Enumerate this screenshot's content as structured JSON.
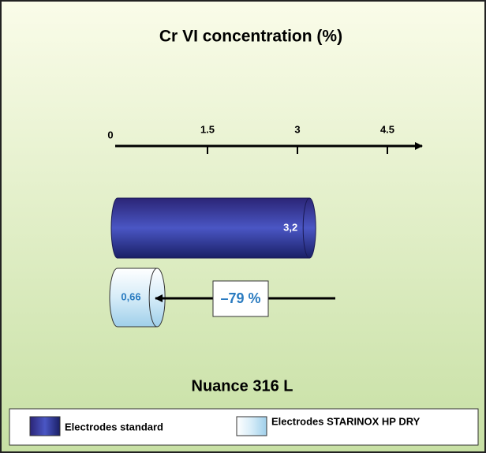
{
  "chart_data": {
    "type": "cylinder-bar",
    "title": "Cr VI concentration (%)",
    "xlim": [
      0,
      5
    ],
    "xticks": [
      0,
      1.5,
      3,
      4.5
    ],
    "series": [
      {
        "name": "Electrodes standard",
        "colors": [
          "#2b2577",
          "#4a56c4",
          "#1a1f66"
        ],
        "values": [
          3.2
        ],
        "value_labels": [
          "3,2"
        ]
      },
      {
        "name": "Electrodes STARINOX HP DRY",
        "colors": [
          "#ffffff",
          "#d6ecf8",
          "#9fcfea"
        ],
        "values": [
          0.66
        ],
        "value_labels": [
          "0,66"
        ]
      }
    ],
    "annotation": "–79 %",
    "footer": "Nuance 316 L"
  }
}
